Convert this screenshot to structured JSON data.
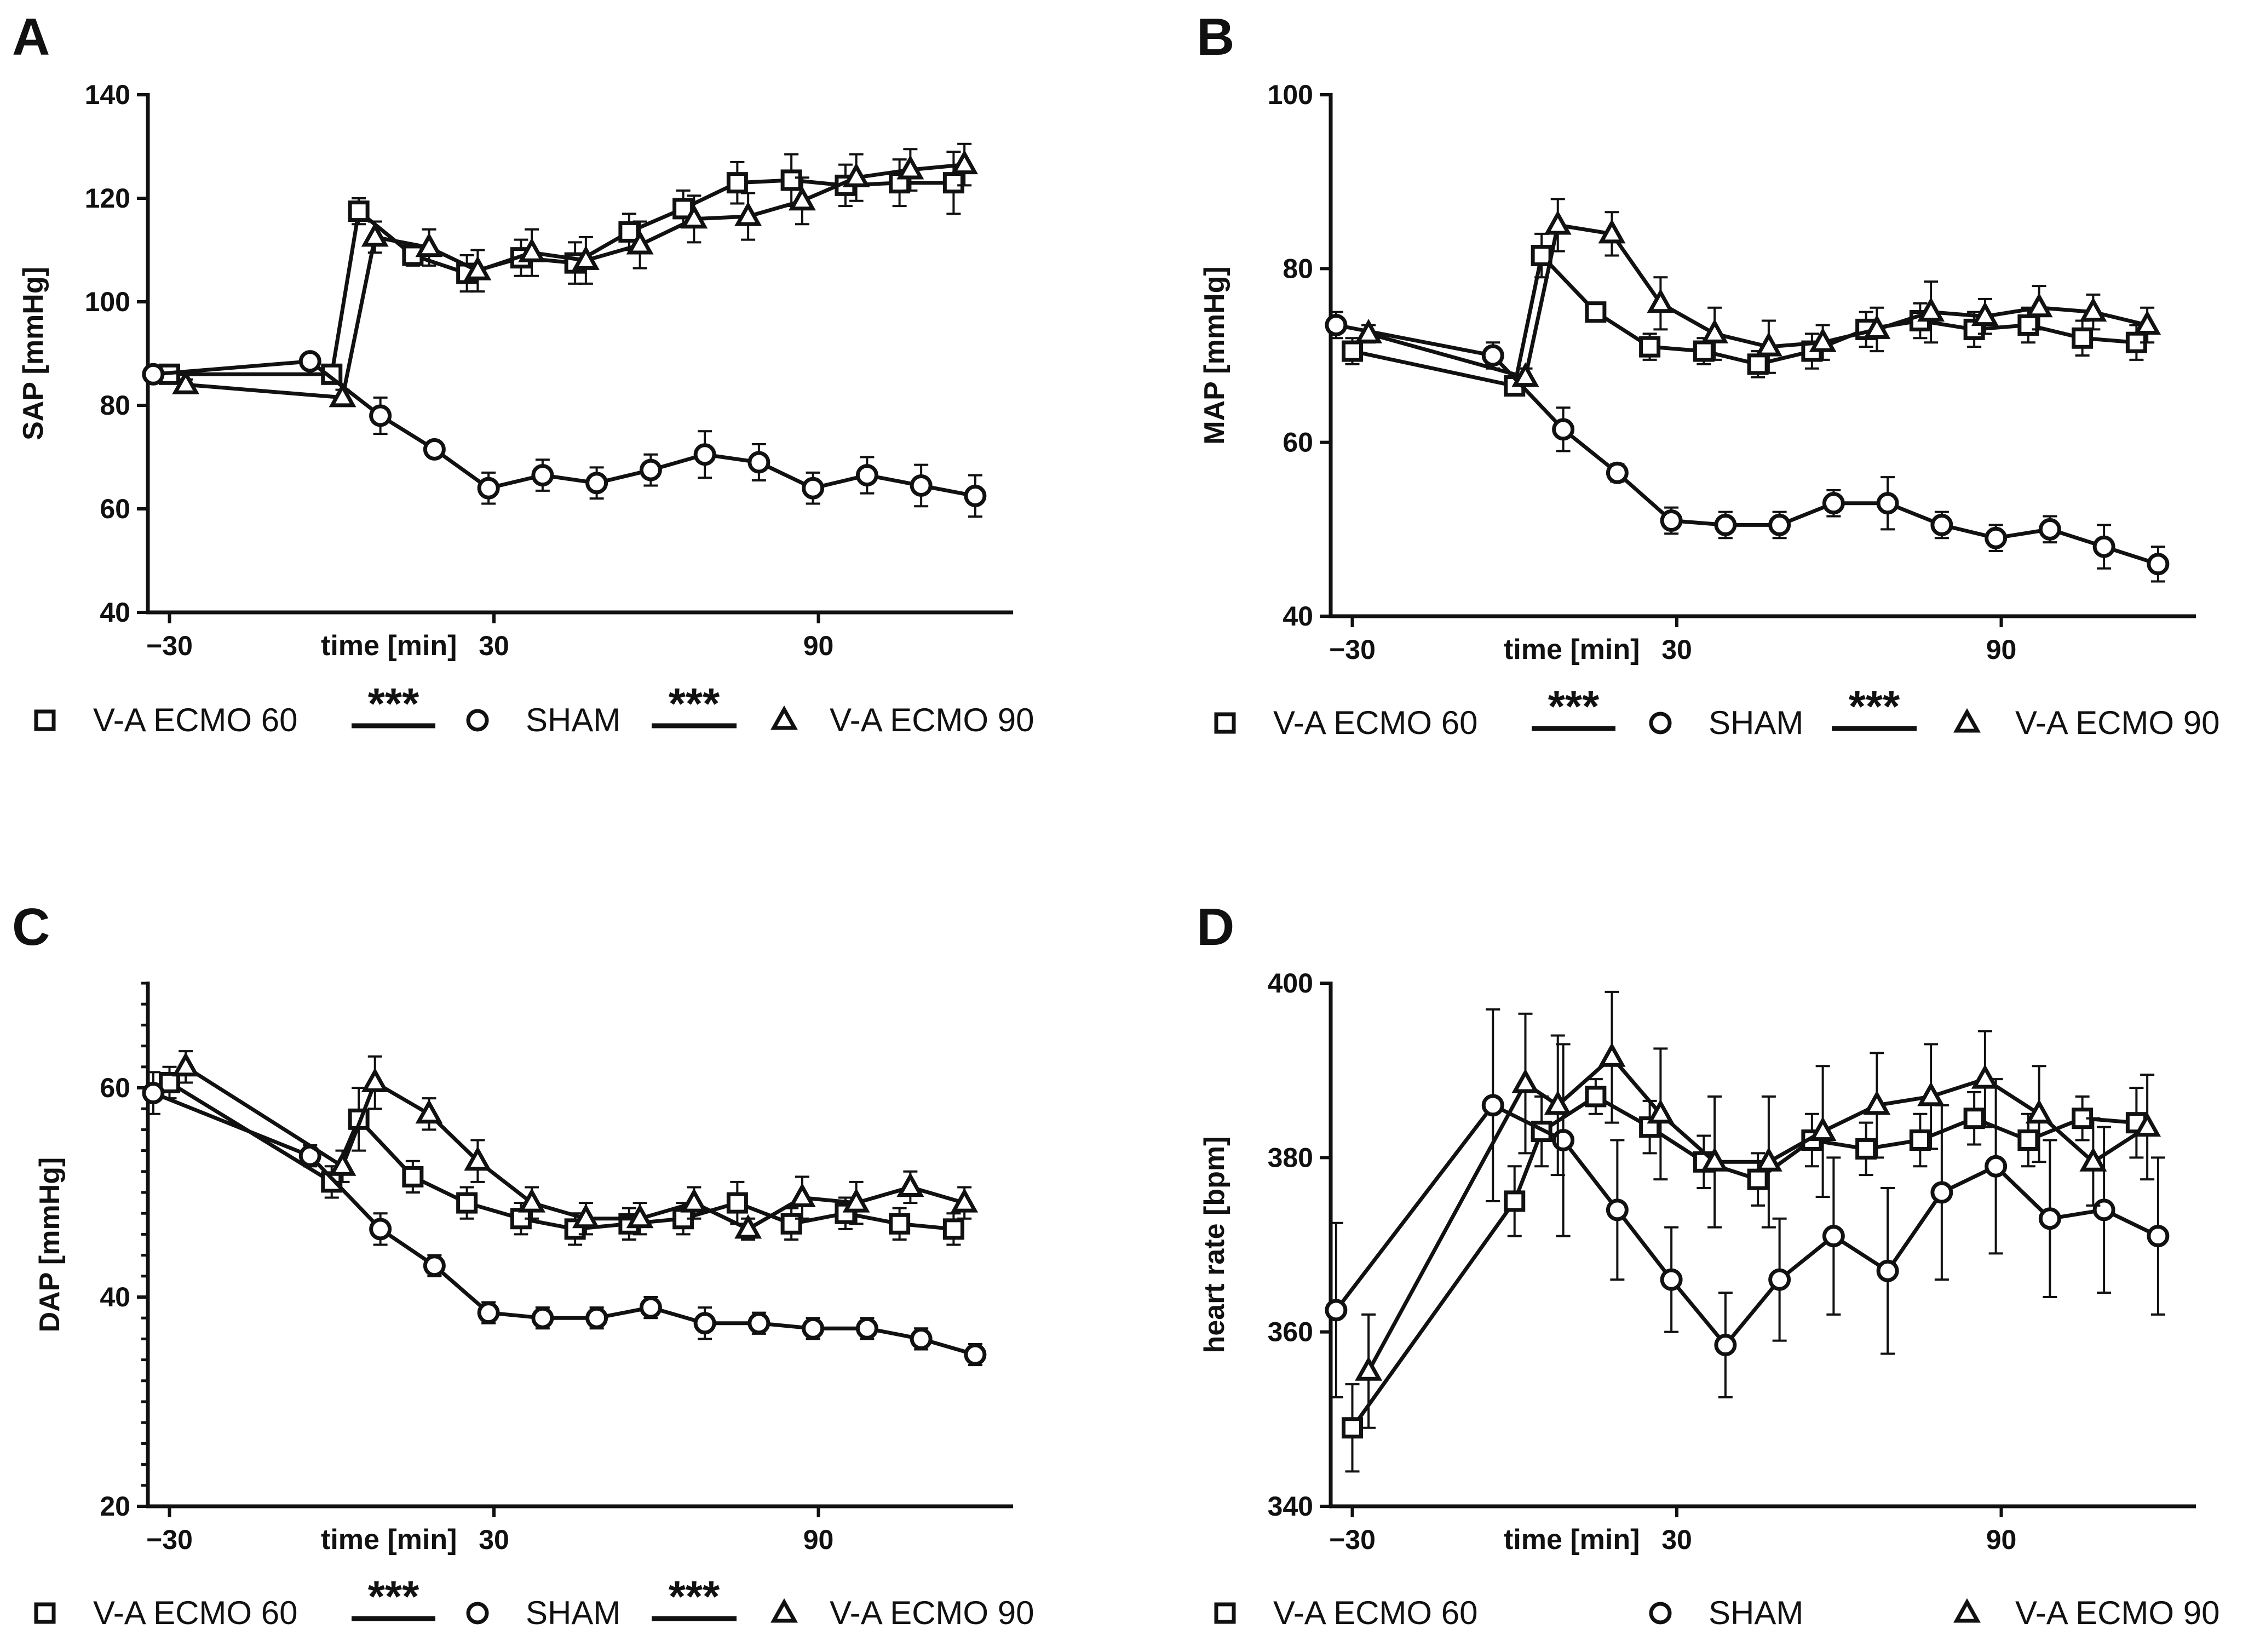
{
  "legend": {
    "items": [
      {
        "symbol": "square",
        "label": "V-A ECMO 60"
      },
      {
        "symbol": "circle",
        "label": "SHAM"
      },
      {
        "symbol": "triangle",
        "label": "V-A ECMO 90"
      }
    ],
    "significance": "***"
  },
  "chart_data": [
    {
      "panel": "A",
      "type": "line",
      "ylabel": "SAP [mmHg]",
      "xlabel": "time [min]",
      "ylim": [
        40,
        140
      ],
      "yticks": [
        "40",
        "60",
        "80",
        "100",
        "120",
        "140"
      ],
      "xlim": [
        -34,
        126
      ],
      "xticks": [
        {
          "v": -30,
          "label": "−30"
        },
        {
          "v": 30,
          "label": "30"
        },
        {
          "v": 90,
          "label": "90"
        }
      ],
      "minor_yticks": false,
      "significance_marks": [
        true,
        true
      ],
      "series": [
        {
          "name": "V-A ECMO 60",
          "marker": "square",
          "x": [
            -30,
            0,
            5,
            15,
            25,
            35,
            45,
            55,
            65,
            75,
            85,
            95,
            105,
            115
          ],
          "y": [
            86,
            86,
            117.5,
            109,
            105.5,
            108.5,
            107.5,
            113.5,
            118,
            123,
            123.5,
            122.5,
            123,
            123
          ],
          "err": [
            1,
            1,
            2.5,
            2,
            3.5,
            3.5,
            4,
            3.5,
            3.5,
            4,
            5,
            4,
            4.5,
            6
          ]
        },
        {
          "name": "SHAM",
          "marker": "circle",
          "x": [
            -33,
            -4,
            9,
            19,
            29,
            39,
            49,
            59,
            69,
            79,
            89,
            99,
            109,
            119
          ],
          "y": [
            86,
            88.5,
            78,
            71.5,
            64,
            66.5,
            65,
            67.5,
            70.5,
            69,
            64,
            66.5,
            64.5,
            62.5
          ],
          "err": [
            0.5,
            1,
            3.5,
            1,
            3,
            3,
            3,
            3,
            4.5,
            3.5,
            3,
            3.5,
            4,
            4
          ]
        },
        {
          "name": "V-A ECMO 90",
          "marker": "triangle",
          "x": [
            -27,
            2,
            8,
            18,
            27,
            37,
            47,
            57,
            67,
            77,
            87,
            97,
            107,
            117
          ],
          "y": [
            84,
            81.5,
            112.5,
            110.5,
            106,
            109.5,
            108,
            111,
            116,
            116.5,
            119.5,
            124,
            125.5,
            126.5
          ],
          "err": [
            1,
            1.5,
            3,
            3.5,
            4,
            4.5,
            4.5,
            4.5,
            4.5,
            4.5,
            4.5,
            4.5,
            4,
            4
          ]
        }
      ]
    },
    {
      "panel": "B",
      "type": "line",
      "ylabel": "MAP [mmHg]",
      "xlabel": "time [min]",
      "ylim": [
        40,
        100
      ],
      "yticks": [
        "40",
        "60",
        "80",
        "100"
      ],
      "xlim": [
        -34,
        126
      ],
      "xticks": [
        {
          "v": -30,
          "label": "−30"
        },
        {
          "v": 30,
          "label": "30"
        },
        {
          "v": 90,
          "label": "90"
        }
      ],
      "minor_yticks": false,
      "significance_marks": [
        true,
        true
      ],
      "series": [
        {
          "name": "V-A ECMO 60",
          "marker": "square",
          "x": [
            -30,
            0,
            5,
            15,
            25,
            35,
            45,
            55,
            65,
            75,
            85,
            95,
            105,
            115
          ],
          "y": [
            70.5,
            66.5,
            81.5,
            75,
            71,
            70.5,
            69,
            70.5,
            73,
            74,
            73,
            73.5,
            72,
            71.5
          ],
          "err": [
            1.5,
            1,
            2.5,
            1,
            1.5,
            1.5,
            1.5,
            2,
            2,
            2,
            2,
            2,
            2,
            2
          ]
        },
        {
          "name": "SHAM",
          "marker": "circle",
          "x": [
            -33,
            -4,
            9,
            19,
            29,
            39,
            49,
            59,
            69,
            79,
            89,
            99,
            109,
            119
          ],
          "y": [
            73.5,
            70,
            61.5,
            56.5,
            51,
            50.5,
            50.5,
            53,
            53,
            50.5,
            49,
            50,
            48,
            46
          ],
          "err": [
            1.5,
            1.5,
            2.5,
            1,
            1.5,
            1.5,
            1.5,
            1.5,
            3,
            1.5,
            1.5,
            1.5,
            2.5,
            2
          ]
        },
        {
          "name": "V-A ECMO 90",
          "marker": "triangle",
          "x": [
            -27,
            2,
            8,
            18,
            27,
            37,
            47,
            57,
            67,
            77,
            87,
            97,
            107,
            117
          ],
          "y": [
            72.5,
            67.5,
            85,
            84,
            76,
            72.5,
            71,
            71.5,
            73,
            75,
            74.5,
            75.5,
            75,
            73.5
          ],
          "err": [
            1,
            1,
            3,
            2.5,
            3,
            3,
            3,
            2,
            2.5,
            3.5,
            2,
            2.5,
            2,
            2
          ]
        }
      ]
    },
    {
      "panel": "C",
      "type": "line",
      "ylabel": "DAP [mmHg]",
      "xlabel": "time [min]",
      "ylim": [
        20,
        70
      ],
      "yticks": [
        "20",
        "40",
        "60"
      ],
      "xlim": [
        -34,
        126
      ],
      "xticks": [
        {
          "v": -30,
          "label": "−30"
        },
        {
          "v": 30,
          "label": "30"
        },
        {
          "v": 90,
          "label": "90"
        }
      ],
      "minor_yticks": true,
      "significance_marks": [
        true,
        true
      ],
      "series": [
        {
          "name": "V-A ECMO 60",
          "marker": "square",
          "x": [
            -30,
            0,
            5,
            15,
            25,
            35,
            45,
            55,
            65,
            75,
            85,
            95,
            105,
            115
          ],
          "y": [
            60.5,
            51,
            57,
            51.5,
            49,
            47.5,
            46.5,
            47,
            47.5,
            49,
            47,
            48,
            47,
            46.5
          ],
          "err": [
            1.5,
            1.5,
            3,
            1.5,
            1.5,
            1.5,
            1.5,
            1.5,
            1.5,
            2,
            1.5,
            1.5,
            1.5,
            1.5
          ]
        },
        {
          "name": "SHAM",
          "marker": "circle",
          "x": [
            -33,
            -4,
            9,
            19,
            29,
            39,
            49,
            59,
            69,
            79,
            89,
            99,
            109,
            119
          ],
          "y": [
            59.5,
            53.5,
            46.5,
            43,
            38.5,
            38,
            38,
            39,
            37.5,
            37.5,
            37,
            37,
            36,
            34.5
          ],
          "err": [
            2,
            1,
            1.5,
            1,
            1,
            1,
            1,
            1,
            1.5,
            1,
            1,
            1,
            1,
            1
          ]
        },
        {
          "name": "V-A ECMO 90",
          "marker": "triangle",
          "x": [
            -27,
            2,
            8,
            18,
            27,
            37,
            47,
            57,
            67,
            77,
            87,
            97,
            107,
            117
          ],
          "y": [
            62,
            52.5,
            60.5,
            57.5,
            53,
            49,
            47.5,
            47.5,
            49,
            46.5,
            49.5,
            49,
            50.5,
            49
          ],
          "err": [
            1.5,
            1.5,
            2.5,
            1.5,
            2,
            1.5,
            1.5,
            1.5,
            1.5,
            1,
            2,
            2,
            1.5,
            1.5
          ]
        }
      ]
    },
    {
      "panel": "D",
      "type": "line",
      "ylabel": "heart rate [bpm]",
      "xlabel": "time [min]",
      "ylim": [
        340,
        400
      ],
      "yticks": [
        "340",
        "360",
        "380",
        "400"
      ],
      "xlim": [
        -34,
        126
      ],
      "xticks": [
        {
          "v": -30,
          "label": "−30"
        },
        {
          "v": 30,
          "label": "30"
        },
        {
          "v": 90,
          "label": "90"
        }
      ],
      "minor_yticks": false,
      "significance_marks": [
        false,
        false
      ],
      "series": [
        {
          "name": "V-A ECMO 60",
          "marker": "square",
          "x": [
            -30,
            0,
            5,
            15,
            25,
            35,
            45,
            55,
            65,
            75,
            85,
            95,
            105,
            115
          ],
          "y": [
            349,
            375,
            383,
            387,
            383.5,
            379.5,
            377.5,
            382,
            381,
            382,
            384.5,
            382,
            384.5,
            384
          ],
          "err": [
            5,
            4,
            4,
            2,
            3,
            3,
            3,
            3,
            3,
            3,
            3,
            3,
            2.5,
            4
          ]
        },
        {
          "name": "SHAM",
          "marker": "circle",
          "x": [
            -33,
            -4,
            9,
            19,
            29,
            39,
            49,
            59,
            69,
            79,
            89,
            99,
            109,
            119
          ],
          "y": [
            362.5,
            386,
            382,
            374,
            366,
            358.5,
            366,
            371,
            367,
            376,
            379,
            373,
            374,
            371
          ],
          "err": [
            10,
            11,
            11,
            8,
            6,
            6,
            7,
            9,
            9.5,
            10,
            10,
            9,
            9.5,
            9
          ]
        },
        {
          "name": "V-A ECMO 90",
          "marker": "triangle",
          "x": [
            -27,
            2,
            8,
            18,
            27,
            37,
            47,
            57,
            67,
            77,
            87,
            97,
            107,
            117
          ],
          "y": [
            355.5,
            388.5,
            386,
            391.5,
            385,
            379.5,
            379.5,
            383,
            386,
            387,
            389,
            385,
            379.5,
            383.5
          ],
          "err": [
            6.5,
            8,
            8,
            7.5,
            7.5,
            7.5,
            7.5,
            7.5,
            6,
            6,
            5.5,
            5.5,
            5,
            6
          ]
        }
      ]
    }
  ]
}
